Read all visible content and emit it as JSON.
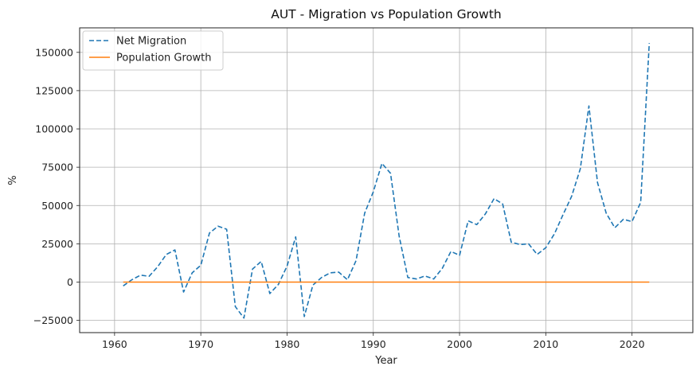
{
  "chart_data": {
    "type": "line",
    "title": "AUT - Migration vs Population Growth",
    "xlabel": "Year",
    "ylabel": "%",
    "xlim": [
      1955.95,
      2027.05
    ],
    "ylim": [
      -33000,
      166000
    ],
    "xticks": [
      1960,
      1970,
      1980,
      1990,
      2000,
      2010,
      2020
    ],
    "yticks": [
      -25000,
      0,
      25000,
      50000,
      75000,
      100000,
      125000,
      150000
    ],
    "grid": true,
    "legend_position": "top-left",
    "x": [
      1961,
      1962,
      1963,
      1964,
      1965,
      1966,
      1967,
      1968,
      1969,
      1970,
      1971,
      1972,
      1973,
      1974,
      1975,
      1976,
      1977,
      1978,
      1979,
      1980,
      1981,
      1982,
      1983,
      1984,
      1985,
      1986,
      1987,
      1988,
      1989,
      1990,
      1991,
      1992,
      1993,
      1994,
      1995,
      1996,
      1997,
      1998,
      1999,
      2000,
      2001,
      2002,
      2003,
      2004,
      2005,
      2006,
      2007,
      2008,
      2009,
      2010,
      2011,
      2012,
      2013,
      2014,
      2015,
      2016,
      2017,
      2018,
      2019,
      2020,
      2021,
      2022
    ],
    "series": [
      {
        "name": "Net Migration",
        "color": "#1f77b4",
        "style": "dashed",
        "values": [
          -2500,
          1500,
          4500,
          3800,
          10000,
          18000,
          21000,
          -6500,
          6000,
          11000,
          32000,
          36500,
          34500,
          -16000,
          -23500,
          8500,
          13500,
          -7500,
          -1500,
          10500,
          29500,
          -22500,
          -2000,
          3000,
          6000,
          6500,
          1500,
          14000,
          45000,
          59000,
          77500,
          71000,
          30000,
          3000,
          2000,
          4000,
          2000,
          9000,
          20000,
          17500,
          40000,
          37500,
          44500,
          54500,
          51000,
          26000,
          24500,
          25000,
          18000,
          22500,
          31500,
          44000,
          56000,
          74000,
          115000,
          65000,
          45000,
          35500,
          41000,
          39500,
          52000,
          156000
        ]
      },
      {
        "name": "Population Growth",
        "color": "#ff7f0e",
        "style": "solid",
        "values": [
          0.6,
          0.6,
          0.6,
          0.6,
          0.6,
          0.6,
          0.6,
          0.5,
          0.5,
          0.4,
          0.3,
          0.3,
          0.3,
          0.2,
          -0.1,
          -0.2,
          -0.1,
          -0.1,
          -0.1,
          0.1,
          0.2,
          -0.1,
          -0.1,
          0.0,
          0.1,
          0.1,
          0.1,
          0.2,
          0.6,
          0.8,
          1.1,
          1.2,
          0.8,
          0.3,
          0.2,
          0.1,
          0.1,
          0.1,
          0.2,
          0.2,
          0.3,
          0.5,
          0.5,
          0.7,
          0.6,
          0.5,
          0.4,
          0.4,
          0.2,
          0.2,
          0.4,
          0.5,
          0.6,
          0.8,
          1.1,
          1.1,
          0.7,
          0.4,
          0.5,
          0.5,
          0.6,
          1.1
        ]
      }
    ]
  }
}
